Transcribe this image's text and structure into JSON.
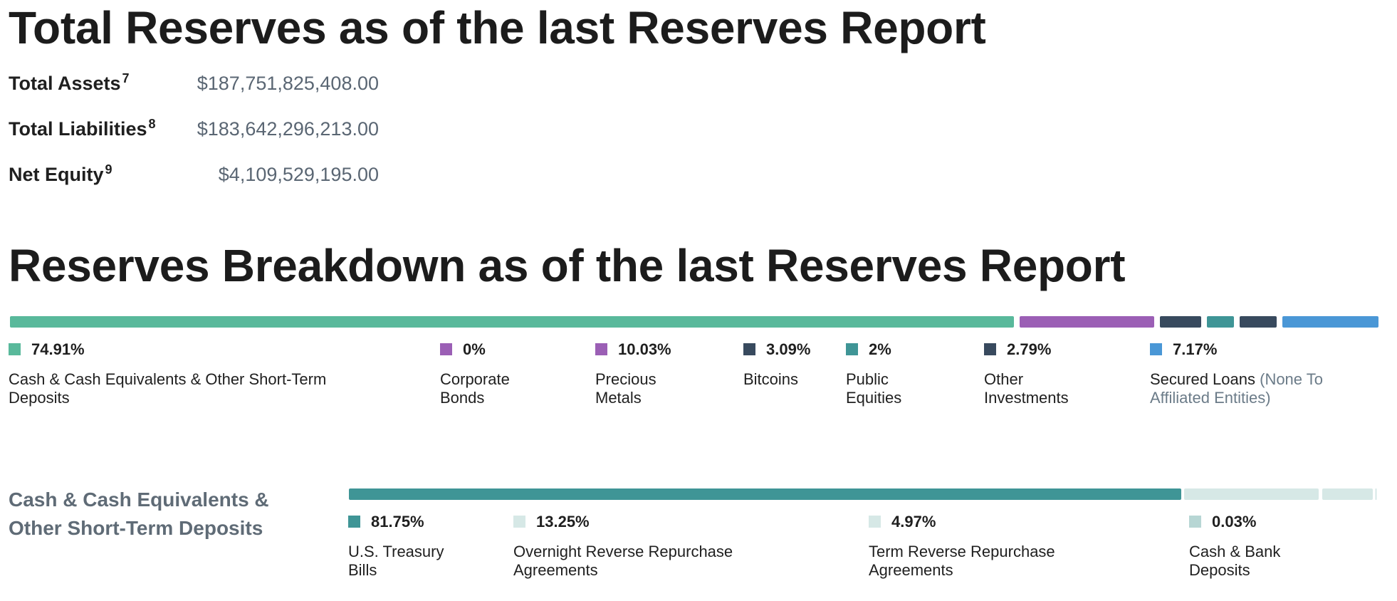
{
  "section1": {
    "title": "Total Reserves as of the last Reserves Report",
    "rows": [
      {
        "label": "Total Assets",
        "note": "7",
        "value": "$187,751,825,408.00"
      },
      {
        "label": "Total Liabilities",
        "note": "8",
        "value": "$183,642,296,213.00"
      },
      {
        "label": "Net Equity",
        "note": "9",
        "value": "$4,109,529,195.00"
      }
    ]
  },
  "section2": {
    "title": "Reserves Breakdown as of the last Reserves Report"
  },
  "chart_data": [
    {
      "type": "bar",
      "stacked": true,
      "categories": [
        "Cash & Cash Equivalents & Other Short-Term Deposits",
        "Corporate Bonds",
        "Precious Metals",
        "Bitcoins",
        "Public Equities",
        "Other Investments",
        "Secured Loans"
      ],
      "category_notes": [
        "",
        "",
        "",
        "",
        "",
        "",
        "(None To Affiliated Entities)"
      ],
      "values": [
        74.91,
        0,
        10.03,
        3.09,
        2,
        2.79,
        7.17
      ],
      "value_labels": [
        "74.91%",
        "0%",
        "10.03%",
        "3.09%",
        "2%",
        "2.79%",
        "7.17%"
      ],
      "colors": [
        "#59b99b",
        "#9b5fb5",
        "#9b5fb5",
        "#384a5e",
        "#3f9596",
        "#384a5e",
        "#4a97d6"
      ],
      "unit": "%"
    },
    {
      "type": "bar",
      "stacked": true,
      "title": "Cash & Cash Equivalents & Other Short-Term Deposits",
      "categories": [
        "U.S. Treasury Bills",
        "Overnight Reverse Repurchase Agreements",
        "Term Reverse Repurchase Agreements",
        "Cash & Bank Deposits"
      ],
      "values": [
        81.75,
        13.25,
        4.97,
        0.03
      ],
      "value_labels": [
        "81.75%",
        "13.25%",
        "4.97%",
        "0.03%"
      ],
      "colors": [
        "#3f9596",
        "#d6e8e6",
        "#d6e8e6",
        "#b7d6d4"
      ],
      "unit": "%"
    }
  ]
}
